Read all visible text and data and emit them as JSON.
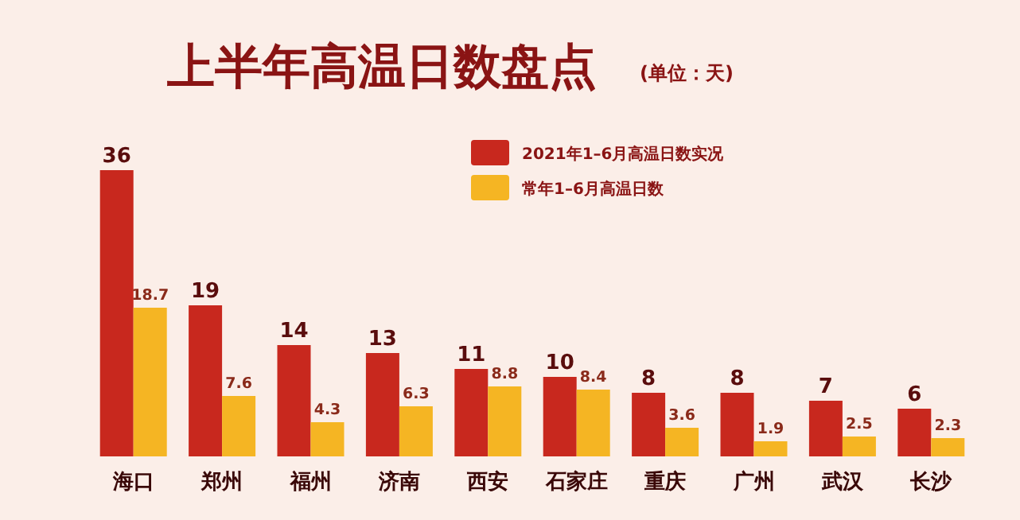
{
  "chart_data": {
    "type": "bar",
    "title": "上半年高温日数盘点",
    "subtitle": "(单位：天)",
    "categories": [
      "海口",
      "郑州",
      "福州",
      "济南",
      "西安",
      "石家庄",
      "重庆",
      "广州",
      "武汉",
      "长沙"
    ],
    "series": [
      {
        "name": "2021年1–6月高温日数实况",
        "color": "#c8281e",
        "values": [
          36,
          19,
          14,
          13,
          11,
          10,
          8,
          8,
          7,
          6
        ]
      },
      {
        "name": "常年1–6月高温日数",
        "color": "#f5b523",
        "values": [
          18.7,
          7.6,
          4.3,
          6.3,
          8.8,
          8.4,
          3.6,
          1.9,
          2.5,
          2.3
        ]
      }
    ],
    "data_labels": true,
    "legend": "top"
  }
}
